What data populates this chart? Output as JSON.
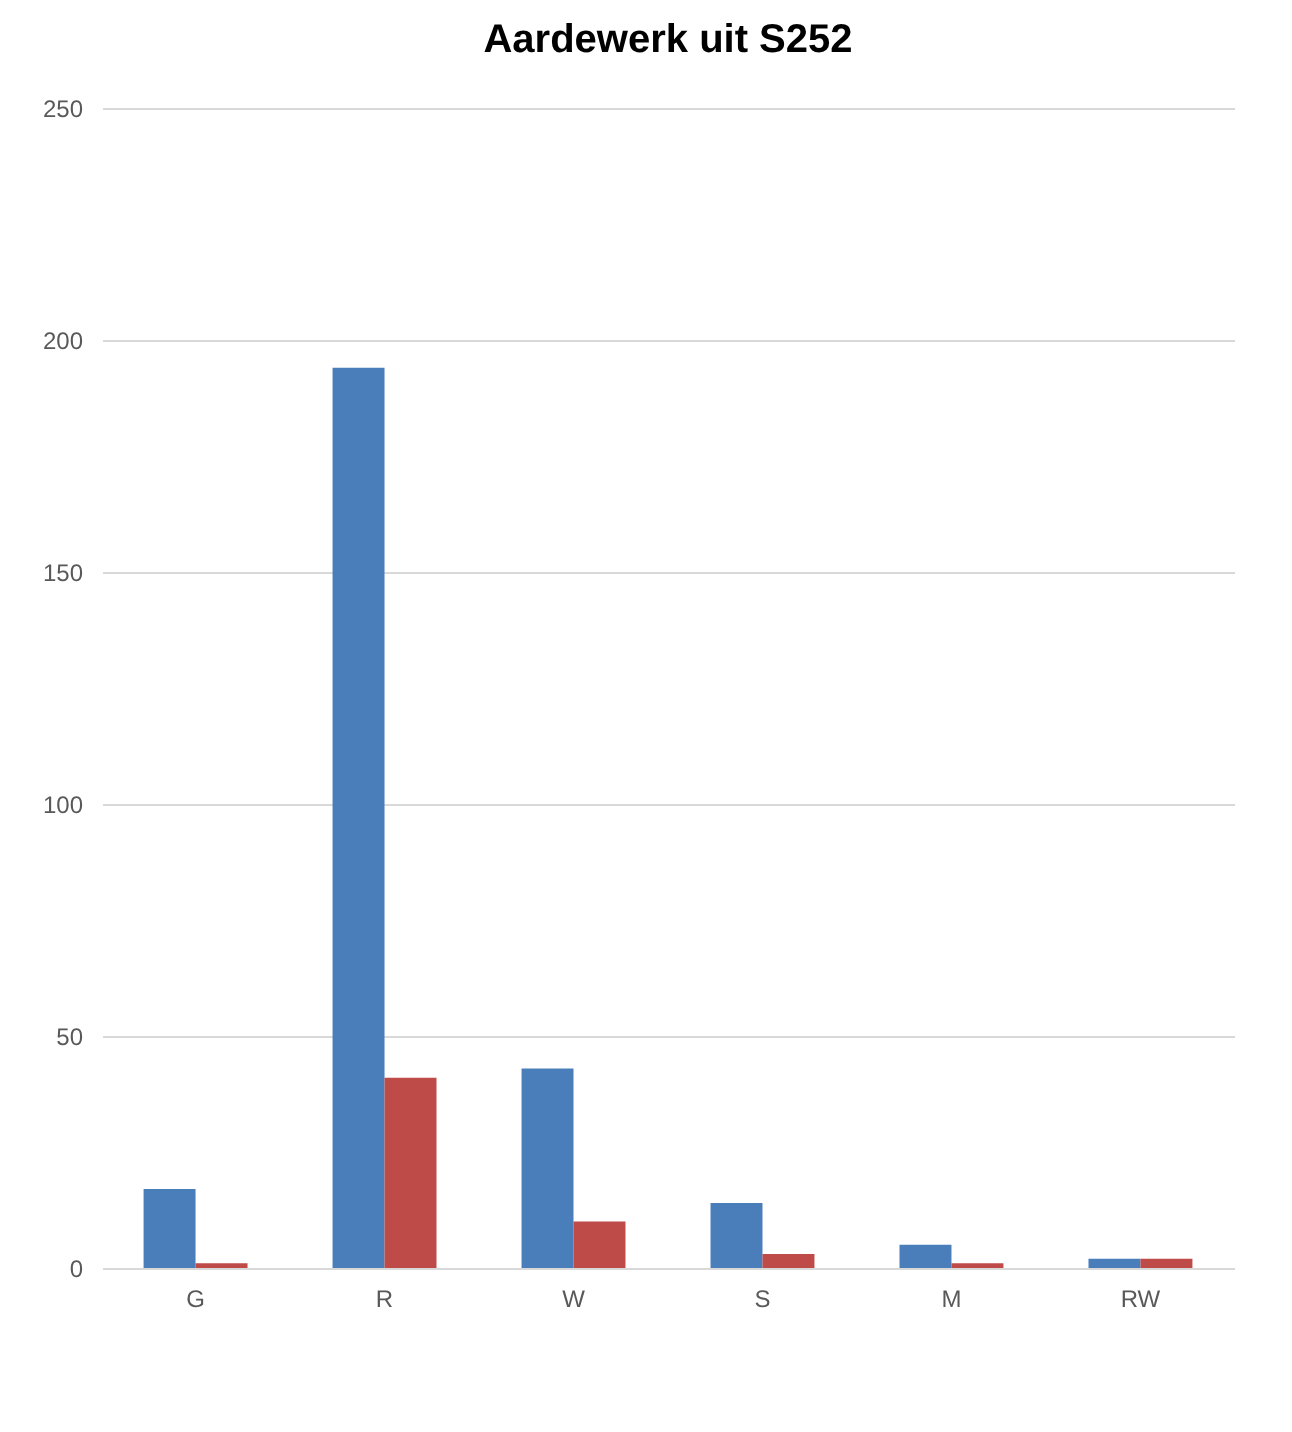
{
  "chart_data": {
    "type": "bar",
    "title": "Aardewerk uit S252",
    "categories": [
      "G",
      "R",
      "W",
      "S",
      "M",
      "RW"
    ],
    "series": [
      {
        "color": "#4a7ebb",
        "values": [
          17,
          194,
          43,
          14,
          5,
          2
        ]
      },
      {
        "color": "#be4b48",
        "values": [
          1,
          41,
          10,
          3,
          1,
          2
        ]
      }
    ],
    "ylim": [
      0,
      250
    ],
    "yticks": [
      0,
      50,
      100,
      150,
      200,
      250
    ],
    "grid": "y",
    "legend": false
  }
}
